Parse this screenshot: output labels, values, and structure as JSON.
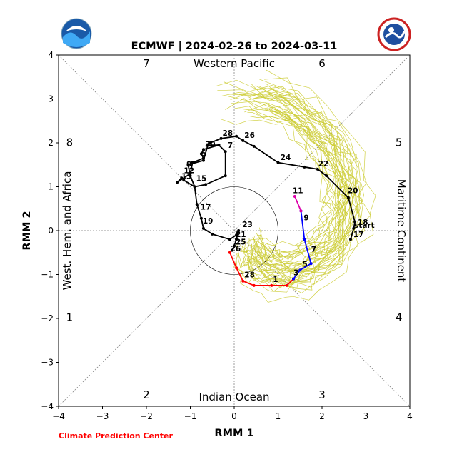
{
  "chart_data": {
    "type": "line",
    "title": "ECMWF | 2024-02-26 to 2024-03-11",
    "xlabel": "RMM 1",
    "ylabel": "RMM 2",
    "xlim": [
      -4,
      4
    ],
    "ylim": [
      -4,
      4
    ],
    "xticks": [
      "−4",
      "−3",
      "−2",
      "−1",
      "0",
      "1",
      "2",
      "3",
      "4"
    ],
    "yticks": [
      "−4",
      "−3",
      "−2",
      "−1",
      "0",
      "1",
      "2",
      "3",
      "4"
    ],
    "grid": false,
    "amplitude_circle_radius": 1,
    "regions": [
      {
        "label": "Western Pacific",
        "x": 0,
        "y": 3.8,
        "rotate": 0
      },
      {
        "label": "Maritime Continent",
        "x": 3.8,
        "y": 0,
        "rotate": 90
      },
      {
        "label": "Indian Ocean",
        "x": 0,
        "y": -3.8,
        "rotate": 0
      },
      {
        "label": "West. Hem. and Africa",
        "x": -3.8,
        "y": 0,
        "rotate": -90
      }
    ],
    "phases": [
      {
        "label": "1",
        "x": -3.75,
        "y": -1.98
      },
      {
        "label": "2",
        "x": -2.0,
        "y": -3.75
      },
      {
        "label": "3",
        "x": 2.0,
        "y": -3.75
      },
      {
        "label": "4",
        "x": 3.75,
        "y": -1.98
      },
      {
        "label": "5",
        "x": 3.75,
        "y": 2.0
      },
      {
        "label": "6",
        "x": 2.0,
        "y": 3.8
      },
      {
        "label": "7",
        "x": -2.0,
        "y": 3.8
      },
      {
        "label": "8",
        "x": -3.75,
        "y": 2.0
      }
    ],
    "series": [
      {
        "color": "#000000",
        "points": [
          [
            2.65,
            -0.2
          ],
          [
            2.72,
            0.05
          ],
          [
            2.75,
            0.2
          ],
          [
            2.6,
            0.75
          ],
          [
            2.1,
            1.25
          ],
          [
            1.9,
            1.4
          ],
          [
            1.6,
            1.45
          ],
          [
            1.0,
            1.55
          ],
          [
            0.45,
            1.92
          ],
          [
            0.2,
            2.05
          ],
          [
            0.05,
            2.15
          ],
          [
            -0.3,
            2.1
          ],
          [
            -0.55,
            2.0
          ],
          [
            -0.6,
            1.95
          ],
          [
            -0.35,
            1.95
          ],
          [
            -0.2,
            1.8
          ],
          [
            -0.2,
            1.25
          ],
          [
            -0.65,
            1.05
          ],
          [
            -0.9,
            1.0
          ],
          [
            -1.15,
            1.15
          ],
          [
            -1.2,
            1.2
          ],
          [
            -1.3,
            1.1
          ],
          [
            -1.0,
            1.3
          ],
          [
            -0.95,
            1.55
          ],
          [
            -0.7,
            1.65
          ],
          [
            -0.75,
            1.75
          ],
          [
            -0.7,
            1.85
          ],
          [
            -0.35,
            1.95
          ],
          [
            -0.6,
            1.95
          ],
          [
            -0.7,
            1.6
          ],
          [
            -1.05,
            1.5
          ],
          [
            -1.0,
            1.25
          ],
          [
            -0.9,
            1.0
          ],
          [
            -0.85,
            0.6
          ],
          [
            -0.75,
            0.28
          ],
          [
            -0.7,
            0.05
          ],
          [
            -0.5,
            -0.08
          ],
          [
            -0.1,
            -0.2
          ],
          [
            0.05,
            -0.1
          ],
          [
            0.1,
            0.0
          ],
          [
            0.05,
            -0.2
          ],
          [
            0.0,
            -0.35
          ],
          [
            -0.05,
            -0.45
          ],
          [
            0.0,
            -0.35
          ],
          [
            0.05,
            -0.2
          ]
        ],
        "labels": [
          {
            "text": "start",
            "x": 2.7,
            "y": 0.03
          },
          {
            "text": "17",
            "x": 2.68,
            "y": -0.18
          },
          {
            "text": "18",
            "x": 2.78,
            "y": 0.1
          },
          {
            "text": "20",
            "x": 2.55,
            "y": 0.82
          },
          {
            "text": "22",
            "x": 1.88,
            "y": 1.43
          },
          {
            "text": "24",
            "x": 1.02,
            "y": 1.58
          },
          {
            "text": "26",
            "x": 0.2,
            "y": 2.08
          },
          {
            "text": "28",
            "x": -0.3,
            "y": 2.13
          },
          {
            "text": "30",
            "x": -0.7,
            "y": 1.88
          },
          {
            "text": "7",
            "x": -0.18,
            "y": 1.85
          },
          {
            "text": "5",
            "x": -0.78,
            "y": 1.67
          },
          {
            "text": "9",
            "x": -1.12,
            "y": 1.42
          },
          {
            "text": "12",
            "x": -1.18,
            "y": 1.28
          },
          {
            "text": "13",
            "x": -1.24,
            "y": 1.15
          },
          {
            "text": "15",
            "x": -0.9,
            "y": 1.1
          },
          {
            "text": "17",
            "x": -0.8,
            "y": 0.45
          },
          {
            "text": "19",
            "x": -0.75,
            "y": 0.13
          },
          {
            "text": "23",
            "x": 0.15,
            "y": 0.05
          },
          {
            "text": "21",
            "x": 0.0,
            "y": -0.18
          },
          {
            "text": "25",
            "x": 0.0,
            "y": -0.35
          },
          {
            "text": "26",
            "x": -0.12,
            "y": -0.5
          }
        ]
      },
      {
        "color": "#ff0000",
        "points": [
          [
            -0.1,
            -0.5
          ],
          [
            0.05,
            -0.85
          ],
          [
            0.2,
            -1.15
          ],
          [
            0.45,
            -1.25
          ],
          [
            0.85,
            -1.25
          ],
          [
            1.2,
            -1.25
          ],
          [
            1.35,
            -1.1
          ]
        ],
        "labels": [
          {
            "text": "28",
            "x": 0.2,
            "y": -1.1
          },
          {
            "text": "1",
            "x": 0.85,
            "y": -1.2
          }
        ]
      },
      {
        "color": "#0000ff",
        "points": [
          [
            1.35,
            -1.1
          ],
          [
            1.5,
            -0.9
          ],
          [
            1.75,
            -0.75
          ],
          [
            1.6,
            -0.2
          ],
          [
            1.52,
            0.45
          ]
        ],
        "labels": [
          {
            "text": "3",
            "x": 1.32,
            "y": -1.05
          },
          {
            "text": "5",
            "x": 1.52,
            "y": -0.85
          },
          {
            "text": "7",
            "x": 1.72,
            "y": -0.52
          },
          {
            "text": "9",
            "x": 1.55,
            "y": 0.2
          }
        ]
      },
      {
        "color": "#dd00aa",
        "points": [
          [
            1.52,
            0.45
          ],
          [
            1.38,
            0.78
          ]
        ],
        "labels": [
          {
            "text": "11",
            "x": 1.3,
            "y": 0.82
          }
        ]
      }
    ],
    "ensemble_color": "#cccc33"
  },
  "credit": {
    "text": "Climate Prediction Center",
    "color": "#ff0000"
  },
  "logos": {
    "left": "NOAA",
    "right": "NATIONAL WEATHER SERVICE"
  }
}
